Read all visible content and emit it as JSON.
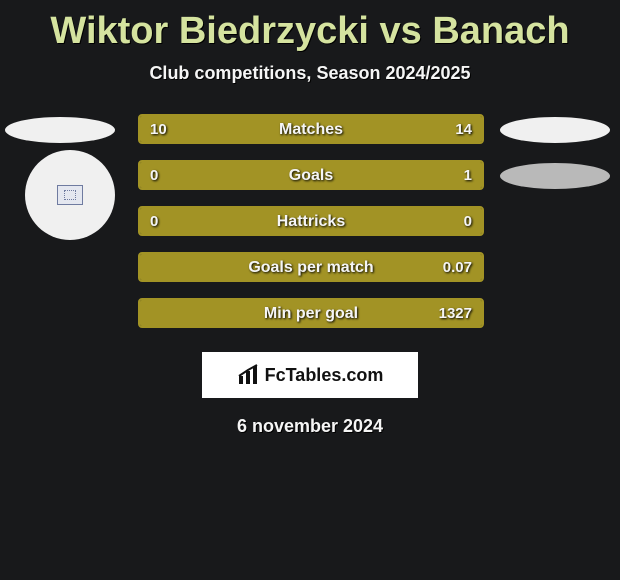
{
  "title": "Wiktor Biedrzycki vs Banach",
  "subtitle": "Club competitions, Season 2024/2025",
  "date_text": "6 november 2024",
  "logo_text": "FcTables.com",
  "colors": {
    "background": "#18191b",
    "accent_text": "#d5e39f",
    "bar_color": "#a29325",
    "text": "#f5f5f5",
    "ellipse_light": "#f0f0f0",
    "ellipse_grey": "#b9b9b9"
  },
  "rows": [
    {
      "label": "Matches",
      "left_val": "10",
      "right_val": "14",
      "left_pct": 40,
      "right_pct": 60,
      "left_deco": "ellipse",
      "right_deco": "ellipse",
      "right_grey": false
    },
    {
      "label": "Goals",
      "left_val": "0",
      "right_val": "1",
      "left_pct": 18,
      "right_pct": 82,
      "left_deco": "circle",
      "right_deco": "ellipse",
      "right_grey": true
    },
    {
      "label": "Hattricks",
      "left_val": "0",
      "right_val": "0",
      "left_pct": 100,
      "right_pct": 0,
      "left_deco": "none",
      "right_deco": "none",
      "right_grey": false
    },
    {
      "label": "Goals per match",
      "left_val": "",
      "right_val": "0.07",
      "left_pct": 0,
      "right_pct": 100,
      "left_deco": "none",
      "right_deco": "none",
      "right_grey": false
    },
    {
      "label": "Min per goal",
      "left_val": "",
      "right_val": "1327",
      "left_pct": 0,
      "right_pct": 100,
      "left_deco": "none",
      "right_deco": "none",
      "right_grey": false
    }
  ]
}
